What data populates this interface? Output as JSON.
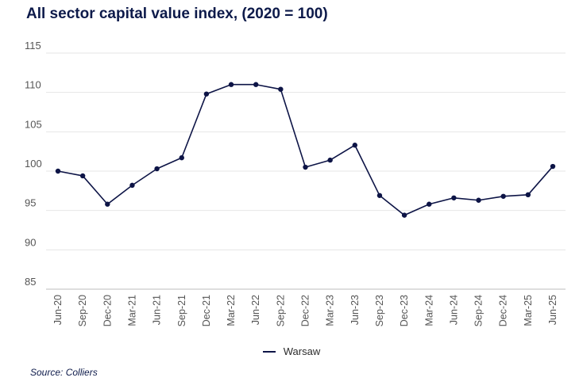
{
  "chart_data": {
    "type": "line",
    "title": "All sector capital value index, (2020 = 100)",
    "xlabel": "",
    "ylabel": "",
    "source": "Source: Colliers",
    "categories": [
      "Jun-20",
      "Sep-20",
      "Dec-20",
      "Mar-21",
      "Jun-21",
      "Sep-21",
      "Dec-21",
      "Mar-22",
      "Jun-22",
      "Sep-22",
      "Dec-22",
      "Mar-23",
      "Jun-23",
      "Sep-23",
      "Dec-23",
      "Mar-24",
      "Jun-24",
      "Sep-24",
      "Dec-24",
      "Mar-25",
      "Jun-25"
    ],
    "series": [
      {
        "name": "Warsaw",
        "color": "#0d1446",
        "values": [
          100.0,
          99.4,
          95.8,
          98.2,
          100.3,
          101.7,
          109.8,
          111.0,
          111.0,
          110.4,
          100.5,
          101.4,
          103.3,
          96.9,
          94.4,
          95.8,
          96.6,
          96.3,
          96.8,
          97.0,
          100.6
        ]
      }
    ],
    "yticks": [
      85,
      90,
      95,
      100,
      105,
      110,
      115
    ],
    "ylim": [
      85,
      115
    ],
    "grid": true,
    "legend_position": "bottom"
  }
}
